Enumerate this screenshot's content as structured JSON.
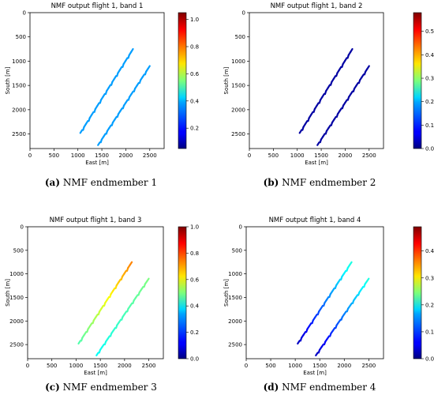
{
  "chart_data": [
    {
      "type": "scatter",
      "title": "NMF output flight 1, band 1",
      "xlabel": "East [m]",
      "ylabel": "South [m]",
      "xlim": [
        0,
        2800
      ],
      "ylim": [
        2800,
        0
      ],
      "xticks": [
        "0",
        "500",
        "1000",
        "1500",
        "2000",
        "2500"
      ],
      "yticks": [
        "0",
        "500",
        "1000",
        "1500",
        "2000",
        "2500"
      ],
      "colorbar": {
        "range": [
          0.05,
          1.05
        ],
        "ticks": [
          "0.2",
          "0.4",
          "0.6",
          "0.8",
          "1.0"
        ],
        "tick_values": [
          0.2,
          0.4,
          0.6,
          0.8,
          1.0
        ]
      },
      "series": [
        {
          "x": [
            1050,
            2150
          ],
          "y": [
            2480,
            750
          ],
          "value_start": 0.33,
          "value_end": 0.33
        },
        {
          "x": [
            1420,
            2500
          ],
          "y": [
            2730,
            1100
          ],
          "value_start": 0.33,
          "value_end": 0.33
        }
      ],
      "caption_label": "(a)",
      "caption_text": " NMF endmember 1"
    },
    {
      "type": "scatter",
      "title": "NMF output flight 1, band 2",
      "xlabel": "East [m]",
      "ylabel": "South [m]",
      "xlim": [
        0,
        2800
      ],
      "ylim": [
        2800,
        0
      ],
      "xticks": [
        "0",
        "500",
        "1000",
        "1500",
        "2000",
        "2500"
      ],
      "yticks": [
        "0",
        "500",
        "1000",
        "1500",
        "2000",
        "2500"
      ],
      "colorbar": {
        "range": [
          0,
          0.58
        ],
        "ticks": [
          "0.0",
          "0.1",
          "0.2",
          "0.3",
          "0.4",
          "0.5"
        ],
        "tick_values": [
          0,
          0.1,
          0.2,
          0.3,
          0.4,
          0.5
        ]
      },
      "series": [
        {
          "x": [
            1050,
            2150
          ],
          "y": [
            2480,
            750
          ],
          "value_start": 0.02,
          "value_end": 0.02
        },
        {
          "x": [
            1420,
            2500
          ],
          "y": [
            2730,
            1100
          ],
          "value_start": 0.02,
          "value_end": 0.02
        }
      ],
      "caption_label": "(b)",
      "caption_text": " NMF endmember 2"
    },
    {
      "type": "scatter",
      "title": "NMF output flight 1, band 3",
      "xlabel": "East [m]",
      "ylabel": "South [m]",
      "xlim": [
        0,
        2800
      ],
      "ylim": [
        2800,
        0
      ],
      "xticks": [
        "0",
        "500",
        "1000",
        "1500",
        "2000",
        "2500"
      ],
      "yticks": [
        "0",
        "500",
        "1000",
        "1500",
        "2000",
        "2500"
      ],
      "colorbar": {
        "range": [
          0,
          1.0
        ],
        "ticks": [
          "0.0",
          "0.2",
          "0.4",
          "0.6",
          "0.8",
          "1.0"
        ],
        "tick_values": [
          0,
          0.2,
          0.4,
          0.6,
          0.8,
          1.0
        ]
      },
      "series": [
        {
          "x": [
            1050,
            2150
          ],
          "y": [
            2480,
            750
          ],
          "value_start": 0.45,
          "value_end": 0.75
        },
        {
          "x": [
            1420,
            2500
          ],
          "y": [
            2730,
            1100
          ],
          "value_start": 0.38,
          "value_end": 0.5
        }
      ],
      "caption_label": "(c)",
      "caption_text": " NMF endmember 3"
    },
    {
      "type": "scatter",
      "title": "NMF output flight 1, band 4",
      "xlabel": "East [m]",
      "ylabel": "South [m]",
      "xlim": [
        0,
        2800
      ],
      "ylim": [
        2800,
        0
      ],
      "xticks": [
        "0",
        "500",
        "1000",
        "1500",
        "2000",
        "2500"
      ],
      "yticks": [
        "0",
        "500",
        "1000",
        "1500",
        "2000",
        "2500"
      ],
      "colorbar": {
        "range": [
          0,
          0.49
        ],
        "ticks": [
          "0.0",
          "0.1",
          "0.2",
          "0.3",
          "0.4"
        ],
        "tick_values": [
          0,
          0.1,
          0.2,
          0.3,
          0.4
        ]
      },
      "series": [
        {
          "x": [
            1050,
            2150
          ],
          "y": [
            2480,
            750
          ],
          "value_start": 0.03,
          "value_end": 0.2
        },
        {
          "x": [
            1420,
            2500
          ],
          "y": [
            2730,
            1100
          ],
          "value_start": 0.03,
          "value_end": 0.2
        }
      ],
      "caption_label": "(d)",
      "caption_text": " NMF endmember 4"
    }
  ]
}
